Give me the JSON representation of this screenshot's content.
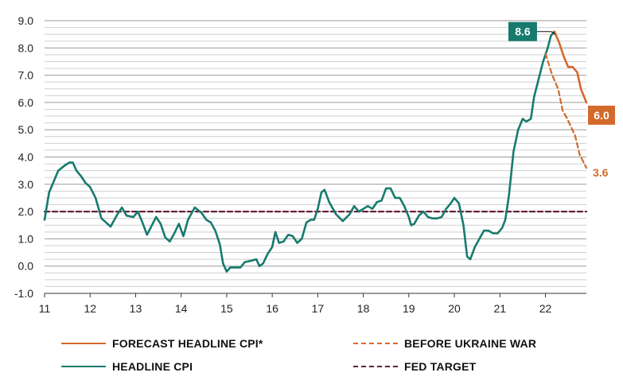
{
  "chart_data": {
    "type": "line",
    "x_axis": {
      "min": 11,
      "max": 22.9,
      "tick_labels": [
        "11",
        "12",
        "13",
        "14",
        "15",
        "16",
        "17",
        "18",
        "19",
        "20",
        "21",
        "22"
      ]
    },
    "y_axis": {
      "min": -1.0,
      "max": 9.0,
      "tick_labels": [
        "9.0",
        "8.0",
        "7.0",
        "6.0",
        "5.0",
        "4.0",
        "3.0",
        "2.0",
        "1.0",
        "0.0",
        "-1.0"
      ]
    },
    "grid": "horizontal minor lines every 0.25",
    "series": [
      {
        "name": "HEADLINE CPI",
        "color": "#177a6e",
        "style": "solid",
        "points": [
          [
            11.0,
            1.7
          ],
          [
            11.1,
            2.7
          ],
          [
            11.3,
            3.5
          ],
          [
            11.45,
            3.7
          ],
          [
            11.55,
            3.8
          ],
          [
            11.62,
            3.8
          ],
          [
            11.7,
            3.5
          ],
          [
            11.8,
            3.3
          ],
          [
            11.9,
            3.05
          ],
          [
            12.0,
            2.9
          ],
          [
            12.12,
            2.5
          ],
          [
            12.25,
            1.75
          ],
          [
            12.35,
            1.6
          ],
          [
            12.45,
            1.45
          ],
          [
            12.6,
            1.9
          ],
          [
            12.7,
            2.15
          ],
          [
            12.8,
            1.85
          ],
          [
            12.95,
            1.8
          ],
          [
            13.05,
            2.0
          ],
          [
            13.15,
            1.6
          ],
          [
            13.25,
            1.15
          ],
          [
            13.45,
            1.8
          ],
          [
            13.55,
            1.55
          ],
          [
            13.65,
            1.05
          ],
          [
            13.75,
            0.9
          ],
          [
            13.85,
            1.2
          ],
          [
            13.95,
            1.55
          ],
          [
            14.05,
            1.1
          ],
          [
            14.15,
            1.7
          ],
          [
            14.3,
            2.15
          ],
          [
            14.45,
            1.95
          ],
          [
            14.55,
            1.7
          ],
          [
            14.65,
            1.6
          ],
          [
            14.75,
            1.3
          ],
          [
            14.85,
            0.8
          ],
          [
            14.92,
            0.1
          ],
          [
            15.0,
            -0.2
          ],
          [
            15.08,
            -0.05
          ],
          [
            15.2,
            -0.05
          ],
          [
            15.3,
            -0.05
          ],
          [
            15.4,
            0.15
          ],
          [
            15.55,
            0.2
          ],
          [
            15.65,
            0.25
          ],
          [
            15.72,
            0.0
          ],
          [
            15.8,
            0.1
          ],
          [
            15.9,
            0.45
          ],
          [
            16.0,
            0.7
          ],
          [
            16.07,
            1.25
          ],
          [
            16.15,
            0.85
          ],
          [
            16.25,
            0.9
          ],
          [
            16.35,
            1.15
          ],
          [
            16.45,
            1.1
          ],
          [
            16.55,
            0.85
          ],
          [
            16.65,
            1.0
          ],
          [
            16.75,
            1.6
          ],
          [
            16.85,
            1.7
          ],
          [
            16.92,
            1.7
          ],
          [
            17.0,
            2.1
          ],
          [
            17.08,
            2.7
          ],
          [
            17.15,
            2.8
          ],
          [
            17.25,
            2.35
          ],
          [
            17.4,
            1.9
          ],
          [
            17.55,
            1.65
          ],
          [
            17.7,
            1.9
          ],
          [
            17.8,
            2.2
          ],
          [
            17.9,
            2.0
          ],
          [
            18.0,
            2.1
          ],
          [
            18.1,
            2.2
          ],
          [
            18.2,
            2.1
          ],
          [
            18.3,
            2.35
          ],
          [
            18.4,
            2.4
          ],
          [
            18.5,
            2.85
          ],
          [
            18.6,
            2.85
          ],
          [
            18.7,
            2.5
          ],
          [
            18.8,
            2.5
          ],
          [
            18.9,
            2.2
          ],
          [
            19.0,
            1.8
          ],
          [
            19.05,
            1.5
          ],
          [
            19.12,
            1.55
          ],
          [
            19.22,
            1.85
          ],
          [
            19.32,
            2.0
          ],
          [
            19.42,
            1.8
          ],
          [
            19.52,
            1.75
          ],
          [
            19.62,
            1.75
          ],
          [
            19.72,
            1.8
          ],
          [
            19.82,
            2.1
          ],
          [
            19.92,
            2.3
          ],
          [
            20.0,
            2.5
          ],
          [
            20.1,
            2.3
          ],
          [
            20.2,
            1.5
          ],
          [
            20.28,
            0.35
          ],
          [
            20.35,
            0.25
          ],
          [
            20.45,
            0.7
          ],
          [
            20.55,
            1.0
          ],
          [
            20.65,
            1.3
          ],
          [
            20.75,
            1.3
          ],
          [
            20.85,
            1.2
          ],
          [
            20.95,
            1.2
          ],
          [
            21.05,
            1.4
          ],
          [
            21.12,
            1.7
          ],
          [
            21.2,
            2.6
          ],
          [
            21.3,
            4.2
          ],
          [
            21.4,
            5.0
          ],
          [
            21.5,
            5.4
          ],
          [
            21.58,
            5.3
          ],
          [
            21.68,
            5.4
          ],
          [
            21.75,
            6.2
          ],
          [
            21.85,
            6.85
          ],
          [
            21.95,
            7.5
          ],
          [
            22.05,
            8.0
          ],
          [
            22.12,
            8.45
          ],
          [
            22.2,
            8.6
          ]
        ]
      },
      {
        "name": "FORECAST HEADLINE CPI*",
        "color": "#d4692c",
        "style": "solid",
        "points": [
          [
            22.2,
            8.6
          ],
          [
            22.3,
            8.2
          ],
          [
            22.4,
            7.7
          ],
          [
            22.5,
            7.3
          ],
          [
            22.6,
            7.3
          ],
          [
            22.7,
            7.1
          ],
          [
            22.78,
            6.5
          ],
          [
            22.9,
            6.0
          ]
        ],
        "end_label": "6.0"
      },
      {
        "name": "BEFORE UKRAINE WAR",
        "color": "#d4692c",
        "style": "dashed",
        "points": [
          [
            22.0,
            7.8
          ],
          [
            22.15,
            7.0
          ],
          [
            22.28,
            6.5
          ],
          [
            22.38,
            5.7
          ],
          [
            22.48,
            5.4
          ],
          [
            22.55,
            5.15
          ],
          [
            22.65,
            4.8
          ],
          [
            22.75,
            4.1
          ],
          [
            22.9,
            3.6
          ]
        ],
        "end_label": "3.6"
      },
      {
        "name": "FED TARGET",
        "color": "#6a1f3c",
        "style": "dashed",
        "points": [
          [
            11.0,
            2.0
          ],
          [
            22.9,
            2.0
          ]
        ]
      }
    ],
    "annotations": [
      {
        "text": "8.6",
        "x": 22.2,
        "y": 8.6,
        "bg": "#177a6e"
      },
      {
        "text": "6.0",
        "x": 22.9,
        "y": 6.0,
        "bg": "#d4692c"
      },
      {
        "text": "3.6",
        "x": 22.9,
        "y": 3.6,
        "color": "#d4692c"
      }
    ],
    "legend": {
      "placement": "bottom",
      "entries": [
        {
          "label": "FORECAST HEADLINE CPI*",
          "color": "#d4692c",
          "style": "solid"
        },
        {
          "label": "BEFORE UKRAINE WAR",
          "color": "#d4692c",
          "style": "dashed"
        },
        {
          "label": "HEADLINE CPI",
          "color": "#177a6e",
          "style": "solid"
        },
        {
          "label": "FED TARGET",
          "color": "#6a1f3c",
          "style": "dashed"
        }
      ]
    }
  }
}
